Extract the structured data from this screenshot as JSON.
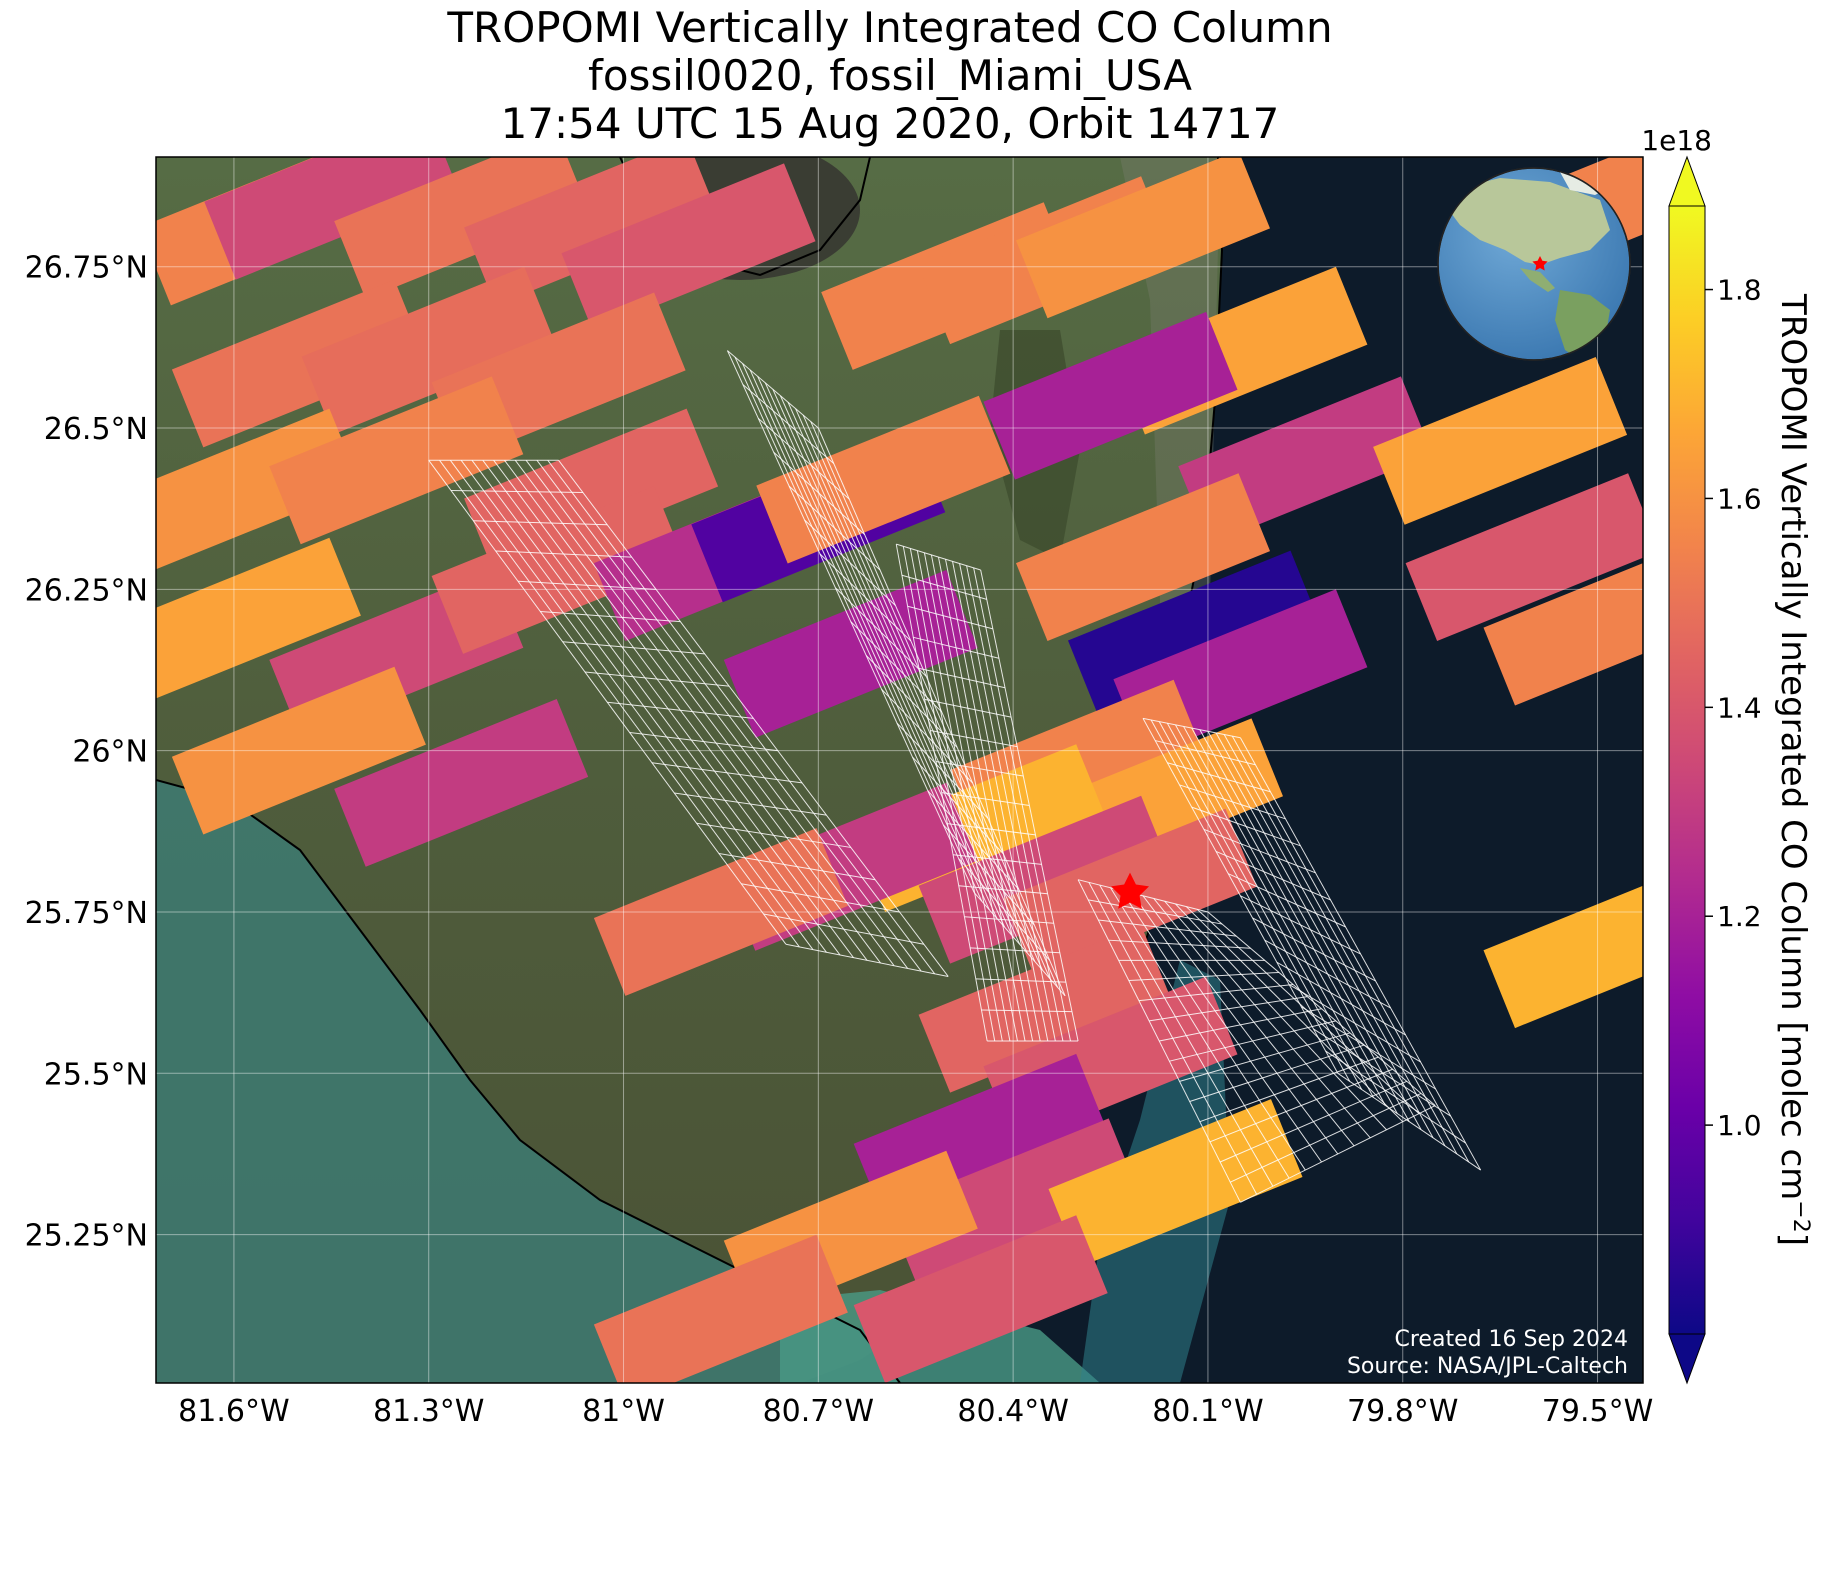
{
  "title": {
    "line1": "TROPOMI Vertically Integrated CO Column",
    "line2": "fossil0020, fossil_Miami_USA",
    "line3": "17:54 UTC 15 Aug 2020, Orbit 14717"
  },
  "map": {
    "lon_range": [
      -81.72,
      -79.43
    ],
    "lat_range": [
      25.02,
      26.92
    ],
    "lat_ticks": [
      {
        "value": 26.75,
        "label": "26.75°N"
      },
      {
        "value": 26.5,
        "label": "26.5°N"
      },
      {
        "value": 26.25,
        "label": "26.25°N"
      },
      {
        "value": 26.0,
        "label": "26°N"
      },
      {
        "value": 25.75,
        "label": "25.75°N"
      },
      {
        "value": 25.5,
        "label": "25.5°N"
      },
      {
        "value": 25.25,
        "label": "25.25°N"
      }
    ],
    "lon_ticks": [
      {
        "value": -81.6,
        "label": "81.6°W"
      },
      {
        "value": -81.3,
        "label": "81.3°W"
      },
      {
        "value": -81.0,
        "label": "81°W"
      },
      {
        "value": -80.7,
        "label": "80.7°W"
      },
      {
        "value": -80.4,
        "label": "80.4°W"
      },
      {
        "value": -80.1,
        "label": "80.1°W"
      },
      {
        "value": -79.8,
        "label": "79.8°W"
      },
      {
        "value": -79.5,
        "label": "79.5°W"
      }
    ],
    "site": {
      "name": "fossil_Miami_USA",
      "lon": -80.22,
      "lat": 25.78,
      "color": "#ff0000"
    },
    "colors": {
      "land": "#4a5a3a",
      "ocean": "#0d1b2a",
      "shallow_water": "#3f8a80",
      "coastline": "#000000",
      "target_grid": "#ffffff"
    },
    "credit_line1": "Created 16 Sep 2024",
    "credit_line2": "Source: NASA/JPL-Caltech"
  },
  "colorbar": {
    "label": "TROPOMI Vertically Integrated CO Column [molec cm",
    "label_suffix": "]",
    "exponent_label": "1e18",
    "vmin": 0.8,
    "vmax": 1.88,
    "colormap": "plasma",
    "extend": "both",
    "ticks": [
      {
        "value": 1.0,
        "label": "1.0"
      },
      {
        "value": 1.2,
        "label": "1.2"
      },
      {
        "value": 1.4,
        "label": "1.4"
      },
      {
        "value": 1.6,
        "label": "1.6"
      },
      {
        "value": 1.8,
        "label": "1.8"
      }
    ]
  },
  "inset": {
    "description": "globe",
    "marker_color": "#ff0000"
  },
  "chart_data": {
    "type": "heatmap",
    "title": "TROPOMI Vertically Integrated CO Column",
    "units": "1e18 molec cm-2",
    "soundings": [
      {
        "lon": -81.55,
        "lat": 26.82,
        "value": 1.55
      },
      {
        "lon": -81.45,
        "lat": 26.86,
        "value": 1.35
      },
      {
        "lon": -81.25,
        "lat": 26.83,
        "value": 1.5
      },
      {
        "lon": -81.05,
        "lat": 26.82,
        "value": 1.45
      },
      {
        "lon": -80.9,
        "lat": 26.78,
        "value": 1.4
      },
      {
        "lon": -81.5,
        "lat": 26.6,
        "value": 1.5
      },
      {
        "lon": -81.3,
        "lat": 26.62,
        "value": 1.48
      },
      {
        "lon": -81.1,
        "lat": 26.58,
        "value": 1.5
      },
      {
        "lon": -81.6,
        "lat": 26.4,
        "value": 1.6
      },
      {
        "lon": -81.35,
        "lat": 26.45,
        "value": 1.55
      },
      {
        "lon": -81.05,
        "lat": 26.4,
        "value": 1.45
      },
      {
        "lon": -81.6,
        "lat": 26.2,
        "value": 1.65
      },
      {
        "lon": -81.35,
        "lat": 26.15,
        "value": 1.35
      },
      {
        "lon": -81.5,
        "lat": 26.0,
        "value": 1.6
      },
      {
        "lon": -81.25,
        "lat": 25.95,
        "value": 1.3
      },
      {
        "lon": -81.1,
        "lat": 26.28,
        "value": 1.45
      },
      {
        "lon": -80.85,
        "lat": 26.3,
        "value": 1.25
      },
      {
        "lon": -80.7,
        "lat": 26.36,
        "value": 0.95
      },
      {
        "lon": -80.6,
        "lat": 26.42,
        "value": 1.55
      },
      {
        "lon": -80.65,
        "lat": 26.15,
        "value": 1.2
      },
      {
        "lon": -80.5,
        "lat": 26.72,
        "value": 1.55
      },
      {
        "lon": -80.35,
        "lat": 26.76,
        "value": 1.55
      },
      {
        "lon": -80.2,
        "lat": 26.8,
        "value": 1.6
      },
      {
        "lon": -80.05,
        "lat": 26.62,
        "value": 1.65
      },
      {
        "lon": -80.25,
        "lat": 26.55,
        "value": 1.2
      },
      {
        "lon": -79.95,
        "lat": 26.45,
        "value": 1.3
      },
      {
        "lon": -80.2,
        "lat": 26.3,
        "value": 1.55
      },
      {
        "lon": -80.12,
        "lat": 26.18,
        "value": 0.85
      },
      {
        "lon": -80.05,
        "lat": 26.12,
        "value": 1.2
      },
      {
        "lon": -80.3,
        "lat": 25.98,
        "value": 1.55
      },
      {
        "lon": -80.18,
        "lat": 25.92,
        "value": 1.65
      },
      {
        "lon": -80.45,
        "lat": 25.88,
        "value": 1.7
      },
      {
        "lon": -80.35,
        "lat": 25.8,
        "value": 1.35
      },
      {
        "lon": -80.22,
        "lat": 25.78,
        "value": 1.45
      },
      {
        "lon": -80.65,
        "lat": 25.82,
        "value": 1.3
      },
      {
        "lon": -80.85,
        "lat": 25.75,
        "value": 1.5
      },
      {
        "lon": -80.35,
        "lat": 25.6,
        "value": 1.45
      },
      {
        "lon": -80.25,
        "lat": 25.52,
        "value": 1.4
      },
      {
        "lon": -80.45,
        "lat": 25.4,
        "value": 1.2
      },
      {
        "lon": -80.4,
        "lat": 25.3,
        "value": 1.35
      },
      {
        "lon": -80.15,
        "lat": 25.33,
        "value": 1.7
      },
      {
        "lon": -80.65,
        "lat": 25.25,
        "value": 1.6
      },
      {
        "lon": -80.85,
        "lat": 25.12,
        "value": 1.5
      },
      {
        "lon": -80.45,
        "lat": 25.15,
        "value": 1.4
      },
      {
        "lon": -79.65,
        "lat": 26.48,
        "value": 1.65
      },
      {
        "lon": -79.6,
        "lat": 26.3,
        "value": 1.4
      },
      {
        "lon": -79.48,
        "lat": 26.2,
        "value": 1.55
      },
      {
        "lon": -79.48,
        "lat": 25.7,
        "value": 1.7
      },
      {
        "lon": -79.48,
        "lat": 26.85,
        "value": 1.55
      }
    ]
  }
}
